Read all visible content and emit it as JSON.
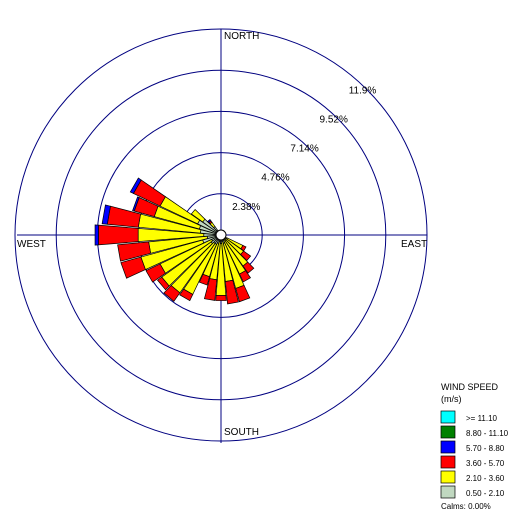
{
  "chart_data": {
    "type": "windrose",
    "direction_labels": {
      "north": "NORTH",
      "east": "EAST",
      "south": "SOUTH",
      "west": "WEST"
    },
    "ring_labels": [
      "2.38%",
      "4.76%",
      "7.14%",
      "9.52%",
      "11.9%"
    ],
    "ring_values": [
      2.38,
      4.76,
      7.14,
      9.52,
      11.9
    ],
    "legend": {
      "title": "WIND SPEED",
      "unit": "(m/s)",
      "calms": "Calms: 0.00%",
      "bins": [
        {
          "label": ">= 11.10",
          "color": "#00ffff"
        },
        {
          "label": "8.80 - 11.10",
          "color": "#008000"
        },
        {
          "label": "5.70 - 8.80",
          "color": "#0000ff"
        },
        {
          "label": "3.60 - 5.70",
          "color": "#ff0000"
        },
        {
          "label": "2.10 - 3.60",
          "color": "#ffff00"
        },
        {
          "label": "0.50 - 2.10",
          "color": "#c0d8c0"
        }
      ]
    },
    "sector_width_deg": 10,
    "sectors": [
      {
        "dir": 0,
        "counts": [
          0.1,
          0,
          0,
          0,
          0,
          0
        ]
      },
      {
        "dir": 10,
        "counts": [
          0.1,
          0,
          0,
          0,
          0,
          0
        ]
      },
      {
        "dir": 20,
        "counts": [
          0.1,
          0,
          0,
          0,
          0,
          0
        ]
      },
      {
        "dir": 30,
        "counts": [
          0.1,
          0,
          0,
          0,
          0,
          0
        ]
      },
      {
        "dir": 40,
        "counts": [
          0.1,
          0,
          0,
          0,
          0,
          0
        ]
      },
      {
        "dir": 50,
        "counts": [
          0.1,
          0,
          0,
          0,
          0,
          0
        ]
      },
      {
        "dir": 60,
        "counts": [
          0.1,
          0,
          0,
          0,
          0,
          0
        ]
      },
      {
        "dir": 70,
        "counts": [
          0.1,
          0,
          0,
          0,
          0,
          0
        ]
      },
      {
        "dir": 80,
        "counts": [
          0.1,
          0,
          0,
          0,
          0,
          0
        ]
      },
      {
        "dir": 90,
        "counts": [
          0.1,
          0,
          0,
          0,
          0,
          0
        ]
      },
      {
        "dir": 100,
        "counts": [
          0.1,
          0,
          0,
          0,
          0,
          0
        ]
      },
      {
        "dir": 110,
        "counts": [
          0.1,
          0,
          0,
          0,
          0,
          0
        ]
      },
      {
        "dir": 120,
        "counts": [
          0.4,
          1.0,
          0.2,
          0,
          0,
          0
        ]
      },
      {
        "dir": 130,
        "counts": [
          0.3,
          1.3,
          0.5,
          0,
          0,
          0
        ]
      },
      {
        "dir": 140,
        "counts": [
          0.4,
          1.8,
          0.5,
          0,
          0,
          0
        ]
      },
      {
        "dir": 150,
        "counts": [
          0.3,
          2.2,
          0.5,
          0,
          0,
          0
        ]
      },
      {
        "dir": 160,
        "counts": [
          0.5,
          2.7,
          0.8,
          0,
          0,
          0
        ]
      },
      {
        "dir": 170,
        "counts": [
          0.4,
          2.3,
          1.3,
          0,
          0,
          0
        ]
      },
      {
        "dir": 180,
        "counts": [
          0.5,
          3.0,
          0.3,
          0,
          0,
          0
        ]
      },
      {
        "dir": 190,
        "counts": [
          0.4,
          2.2,
          1.2,
          0,
          0,
          0
        ]
      },
      {
        "dir": 200,
        "counts": [
          0.5,
          2.0,
          0.5,
          0,
          0,
          0
        ]
      },
      {
        "dir": 210,
        "counts": [
          0.6,
          3.2,
          0.4,
          0,
          0,
          0
        ]
      },
      {
        "dir": 220,
        "counts": [
          0.6,
          3.5,
          0.6,
          0,
          0,
          0
        ]
      },
      {
        "dir": 230,
        "counts": [
          0.7,
          3.5,
          0.3,
          0,
          0,
          0
        ]
      },
      {
        "dir": 240,
        "counts": [
          0.6,
          3.3,
          0.9,
          0,
          0,
          0
        ]
      },
      {
        "dir": 250,
        "counts": [
          1.1,
          3.7,
          1.2,
          0,
          0,
          0
        ]
      },
      {
        "dir": 260,
        "counts": [
          0.8,
          3.4,
          1.8,
          0,
          0,
          0
        ]
      },
      {
        "dir": 270,
        "counts": [
          1.0,
          3.8,
          2.3,
          0.2,
          0,
          0
        ]
      },
      {
        "dir": 280,
        "counts": [
          1.2,
          3.6,
          1.8,
          0.3,
          0,
          0
        ]
      },
      {
        "dir": 290,
        "counts": [
          1.3,
          2.7,
          1.2,
          0.1,
          0,
          0
        ]
      },
      {
        "dir": 300,
        "counts": [
          1.5,
          2.4,
          1.7,
          0.2,
          0,
          0
        ]
      },
      {
        "dir": 310,
        "counts": [
          1.3,
          0.8,
          0,
          0,
          0,
          0
        ]
      },
      {
        "dir": 320,
        "counts": [
          0.6,
          0.3,
          0.1,
          0.1,
          0,
          0
        ]
      },
      {
        "dir": 330,
        "counts": [
          0.2,
          0,
          0,
          0,
          0,
          0
        ]
      },
      {
        "dir": 340,
        "counts": [
          0.1,
          0,
          0,
          0,
          0,
          0
        ]
      },
      {
        "dir": 350,
        "counts": [
          0.1,
          0,
          0,
          0,
          0,
          0
        ]
      }
    ]
  }
}
